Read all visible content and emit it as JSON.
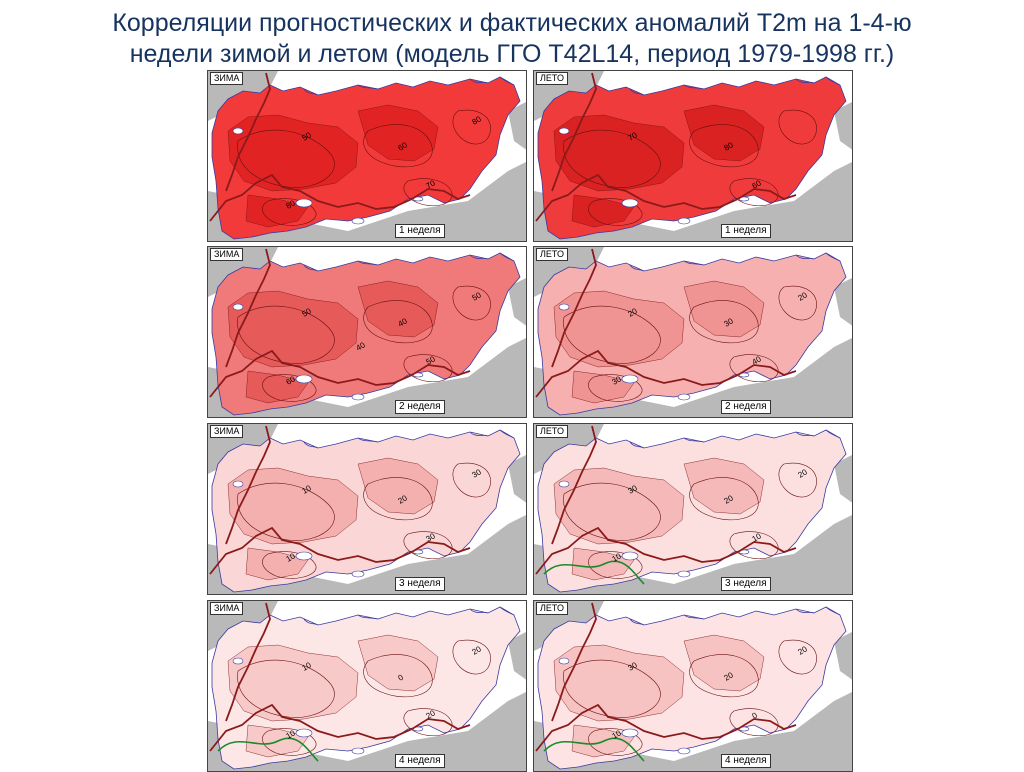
{
  "title": {
    "line1": "Корреляции прогностических и фактических аномалий Т2m на 1-4-ю",
    "line2": "недели зимой и летом (модель ГГО T42L14, период 1979-1998 гг.)"
  },
  "panels": [
    {
      "season": "ЗИМА",
      "week_label": "1 неделя",
      "fill": "#f23a3a",
      "inner": "#e02020",
      "isolines": [
        "50",
        "60",
        "70",
        "80",
        "80"
      ]
    },
    {
      "season": "ЛЕТО",
      "week_label": "1 неделя",
      "fill": "#ef3b3b",
      "inner": "#d81e1e",
      "isolines": [
        "70",
        "80",
        "60"
      ]
    },
    {
      "season": "ЗИМА",
      "week_label": "2 неделя",
      "fill": "#f07a7a",
      "inner": "#e55555",
      "isolines": [
        "50",
        "40",
        "50",
        "60",
        "50",
        "40"
      ]
    },
    {
      "season": "ЛЕТО",
      "week_label": "2 неделя",
      "fill": "#f6b0b0",
      "inner": "#ee8e8e",
      "isolines": [
        "20",
        "30",
        "40",
        "30",
        "20"
      ]
    },
    {
      "season": "ЗИМА",
      "week_label": "3 неделя",
      "fill": "#fbd6d6",
      "inner": "#f3a9a9",
      "isolines": [
        "10",
        "20",
        "30",
        "10",
        "30"
      ]
    },
    {
      "season": "ЛЕТО",
      "week_label": "3 неделя",
      "fill": "#fce0e0",
      "inner": "#f4b3b3",
      "isolines": [
        "30",
        "20",
        "10",
        "10",
        "20"
      ]
    },
    {
      "season": "ЗИМА",
      "week_label": "4 неделя",
      "fill": "#fde6e6",
      "inner": "#f7c4c4",
      "isolines": [
        "10",
        "0",
        "20",
        "10",
        "20"
      ]
    },
    {
      "season": "ЛЕТО",
      "week_label": "4 неделя",
      "fill": "#fde3e3",
      "inner": "#f6bdbd",
      "isolines": [
        "30",
        "20",
        "0",
        "10",
        "20"
      ]
    }
  ],
  "colors": {
    "land_grey": "#b9b9b9",
    "water": "#ffffff",
    "border": "#8b1a1a",
    "coast": "#3a3aa0",
    "zero_isoline": "#1a8a2a"
  }
}
